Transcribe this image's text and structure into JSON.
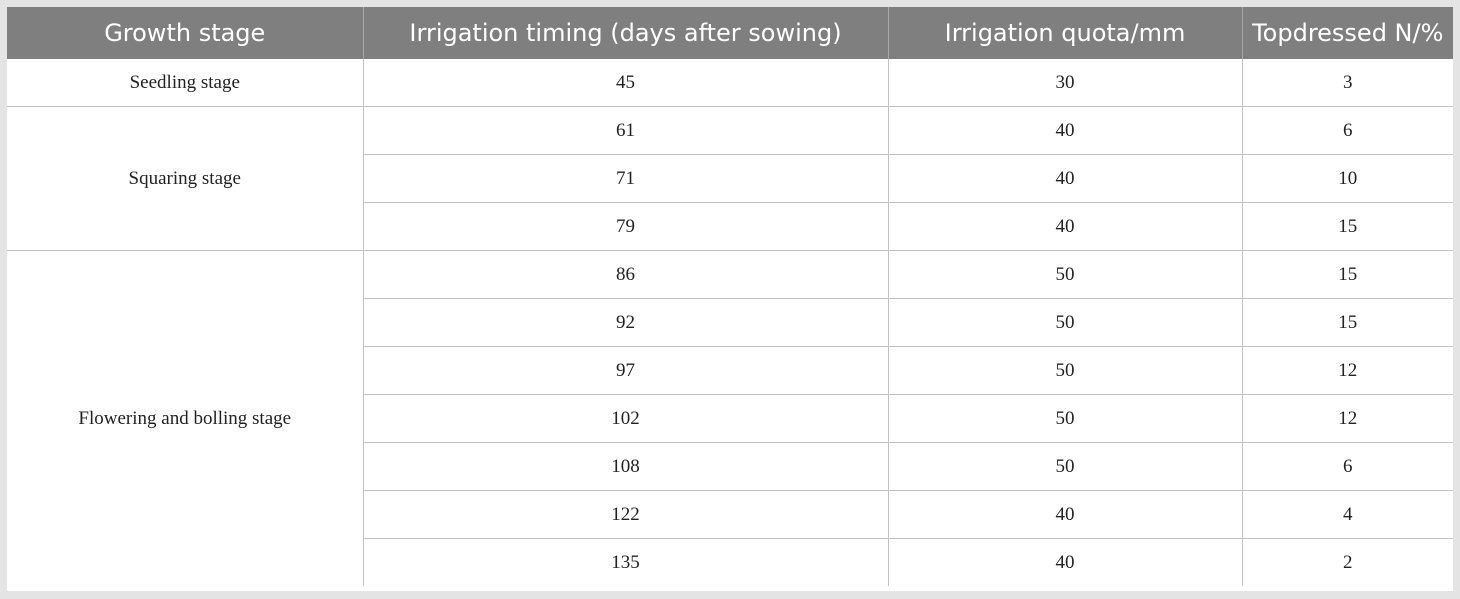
{
  "table": {
    "headers": [
      "Growth stage",
      "Irrigation timing (days after sowing)",
      "Irrigation quota/mm",
      "Topdressed N/%"
    ],
    "groups": [
      {
        "stage": "Seedling stage",
        "rows": [
          {
            "timing": "45",
            "quota": "30",
            "n": "3"
          }
        ]
      },
      {
        "stage": "Squaring stage",
        "rows": [
          {
            "timing": "61",
            "quota": "40",
            "n": "6"
          },
          {
            "timing": "71",
            "quota": "40",
            "n": "10"
          },
          {
            "timing": "79",
            "quota": "40",
            "n": "15"
          }
        ]
      },
      {
        "stage": "Flowering and bolling stage",
        "rows": [
          {
            "timing": "86",
            "quota": "50",
            "n": "15"
          },
          {
            "timing": "92",
            "quota": "50",
            "n": "15"
          },
          {
            "timing": "97",
            "quota": "50",
            "n": "12"
          },
          {
            "timing": "102",
            "quota": "50",
            "n": "12"
          },
          {
            "timing": "108",
            "quota": "50",
            "n": "6"
          },
          {
            "timing": "122",
            "quota": "40",
            "n": "4"
          },
          {
            "timing": "135",
            "quota": "40",
            "n": "2"
          }
        ]
      }
    ]
  }
}
